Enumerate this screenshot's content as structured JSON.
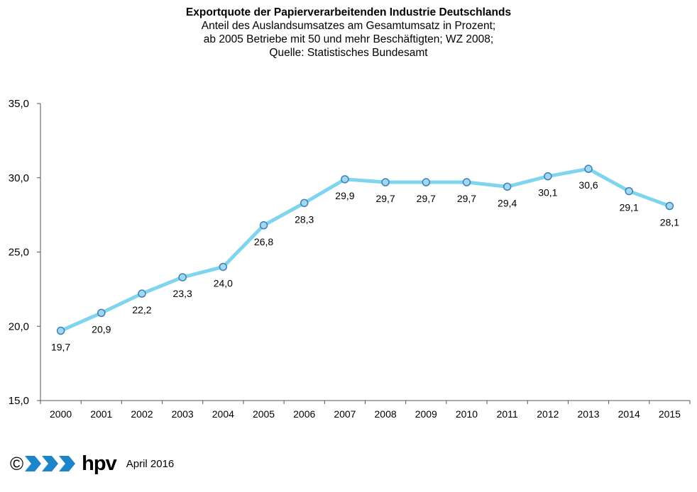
{
  "chart_data": {
    "type": "line",
    "title": "Exportquote der Papierverarbeitenden Industrie Deutschlands",
    "subtitle": [
      "Anteil des Auslandsumsatzes  am Gesamtumsatz in Prozent;",
      "ab 2005 Betriebe mit 50 und  mehr Beschäftigten; WZ 2008;",
      "Quelle:  Statistisches Bundesamt"
    ],
    "categories": [
      "2000",
      "2001",
      "2002",
      "2003",
      "2004",
      "2005",
      "2006",
      "2007",
      "2008",
      "2009",
      "2010",
      "2011",
      "2012",
      "2013",
      "2014",
      "2015"
    ],
    "values": [
      19.7,
      20.9,
      22.2,
      23.3,
      24.0,
      26.8,
      28.3,
      29.9,
      29.7,
      29.7,
      29.7,
      29.4,
      30.1,
      30.6,
      29.1,
      28.1
    ],
    "data_labels": [
      "19,7",
      "20,9",
      "22,2",
      "23,3",
      "24,0",
      "26,8",
      "28,3",
      "29,9",
      "29,7",
      "29,7",
      "29,7",
      "29,4",
      "30,1",
      "30,6",
      "29,1",
      "28,1"
    ],
    "ylim": [
      15,
      35
    ],
    "y_ticks": [
      15,
      20,
      25,
      30,
      35
    ],
    "y_tick_labels": [
      "15,0",
      "20,0",
      "25,0",
      "30,0",
      "35,0"
    ],
    "grid": false,
    "legend": false,
    "line_color": "#7fd4ee",
    "marker_fill": "#9fd8f0",
    "marker_stroke": "#3f7fb2"
  },
  "footer": {
    "copyright": "©",
    "brand": "hpv",
    "brand_icon": "chevron-arrows-logo",
    "date": "April 2016"
  }
}
